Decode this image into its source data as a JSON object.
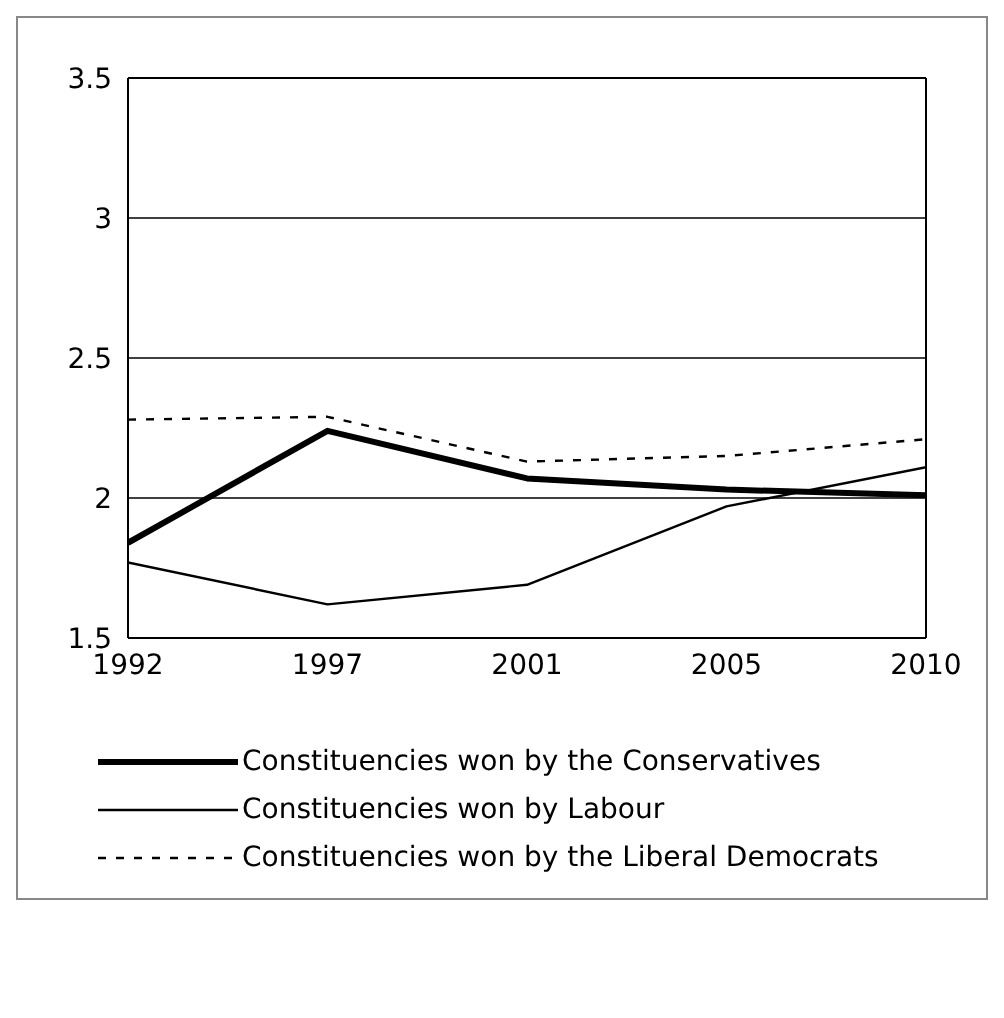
{
  "chart_data": {
    "type": "line",
    "categories": [
      "1992",
      "1997",
      "2001",
      "2005",
      "2010"
    ],
    "series": [
      {
        "name": "Constituencies won by the Conservatives",
        "color": "#000000",
        "line_style": "solid",
        "values": [
          1.84,
          2.24,
          2.07,
          2.03,
          2.01
        ]
      },
      {
        "name": "Constituencies won by Labour",
        "color": "#000000",
        "line_style": "solid",
        "values": [
          1.77,
          1.62,
          1.69,
          1.97,
          2.11
        ]
      },
      {
        "name": "Constituencies won by the Liberal Democrats",
        "color": "#000000",
        "line_style": "dashed",
        "values": [
          2.28,
          2.29,
          2.13,
          2.15,
          2.21
        ]
      }
    ],
    "ylim": [
      1.5,
      3.5
    ],
    "yticks": [
      1.5,
      2,
      2.5,
      3,
      3.5
    ],
    "grid": "y",
    "legend": "bottom",
    "marker": "none"
  }
}
